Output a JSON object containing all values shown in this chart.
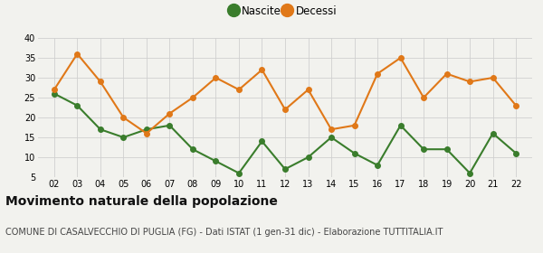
{
  "years": [
    2,
    3,
    4,
    5,
    6,
    7,
    8,
    9,
    10,
    11,
    12,
    13,
    14,
    15,
    16,
    17,
    18,
    19,
    20,
    21,
    22
  ],
  "nascite": [
    26,
    23,
    17,
    15,
    17,
    18,
    12,
    9,
    6,
    14,
    7,
    10,
    15,
    11,
    8,
    18,
    12,
    12,
    6,
    16,
    11
  ],
  "decessi": [
    27,
    36,
    29,
    20,
    16,
    21,
    25,
    30,
    27,
    32,
    22,
    27,
    17,
    18,
    31,
    35,
    25,
    31,
    29,
    30,
    23
  ],
  "nascite_color": "#3a7d2c",
  "decessi_color": "#e07818",
  "background_color": "#f2f2ee",
  "grid_color": "#d0d0d0",
  "ylim": [
    5,
    40
  ],
  "yticks": [
    5,
    10,
    15,
    20,
    25,
    30,
    35,
    40
  ],
  "legend_nascite": "Nascite",
  "legend_decessi": "Decessi",
  "title": "Movimento naturale della popolazione",
  "subtitle": "COMUNE DI CASALVECCHIO DI PUGLIA (FG) - Dati ISTAT (1 gen-31 dic) - Elaborazione TUTTITALIA.IT",
  "title_fontsize": 10,
  "subtitle_fontsize": 7,
  "marker_size": 4,
  "line_width": 1.5
}
